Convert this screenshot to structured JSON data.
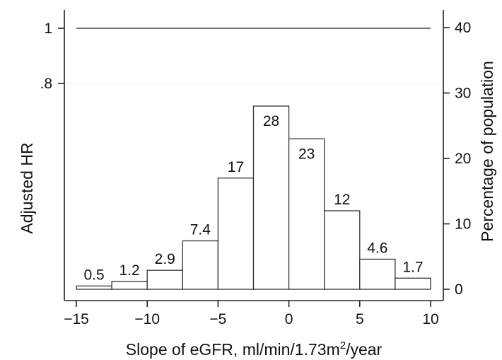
{
  "chart_data": {
    "type": "bar",
    "x_bins": [
      [
        -15,
        -12.5
      ],
      [
        -12.5,
        -10
      ],
      [
        -10,
        -7.5
      ],
      [
        -7.5,
        -5
      ],
      [
        -5,
        -2.5
      ],
      [
        -2.5,
        0
      ],
      [
        0,
        2.5
      ],
      [
        2.5,
        5
      ],
      [
        5,
        7.5
      ],
      [
        7.5,
        10
      ]
    ],
    "values": [
      0.5,
      1.2,
      2.9,
      7.4,
      17,
      28,
      23,
      12,
      4.6,
      1.7
    ],
    "value_labels": [
      "0.5",
      "1.2",
      "2.9",
      "7.4",
      "17",
      "28",
      "23",
      "12",
      "4.6",
      "1.7"
    ],
    "xlabel_main": "Slope of eGFR, ml/min/1.73m",
    "xlabel_sup": "2",
    "xlabel_end": "/year",
    "ylabel_left": "Adjusted HR",
    "ylabel_right": "Percentage of population",
    "xlim": [
      -15,
      10
    ],
    "x_ticks": [
      -15,
      -10,
      -5,
      0,
      5,
      10
    ],
    "x_tick_labels": [
      "−15",
      "−10",
      "−5",
      "0",
      "5",
      "10"
    ],
    "y_right_lim": [
      0,
      40
    ],
    "y_right_ticks": [
      0,
      10,
      20,
      30,
      40
    ],
    "y_right_tick_labels": [
      "0",
      "10",
      "20",
      "30",
      "40"
    ],
    "y_left_ticks": [
      1,
      0.8
    ],
    "y_left_tick_labels": [
      "1",
      ".8"
    ],
    "adjusted_hr_line": {
      "x": [
        -15,
        10
      ],
      "y": [
        1,
        1
      ]
    },
    "grid": false
  }
}
